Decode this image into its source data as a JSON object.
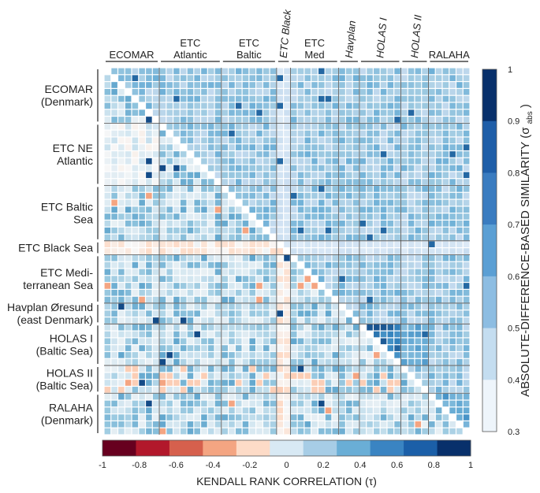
{
  "chart_data": {
    "type": "heatmap",
    "title": "",
    "groups": [
      {
        "id": "ECOMAR",
        "n": 8,
        "top_label": [
          "ECOMAR"
        ],
        "top_italic": false,
        "left_label": [
          "ECOMAR",
          "(Denmark)"
        ]
      },
      {
        "id": "ETC NE Atlantic",
        "n": 9,
        "top_label": [
          "ETC",
          "Atlantic"
        ],
        "top_italic": false,
        "left_label": [
          "ETC NE",
          "Atlantic"
        ]
      },
      {
        "id": "ETC Baltic Sea",
        "n": 8,
        "top_label": [
          "ETC",
          "Baltic"
        ],
        "top_italic": false,
        "left_label": [
          "ETC Baltic",
          "Sea"
        ]
      },
      {
        "id": "ETC Black Sea",
        "n": 2,
        "top_label": [
          "ETC Black"
        ],
        "top_italic": true,
        "left_label": [
          "ETC Black Sea"
        ]
      },
      {
        "id": "ETC Mediterranean Sea",
        "n": 7,
        "top_label": [
          "ETC",
          "Med"
        ],
        "top_italic": false,
        "left_label": [
          "ETC Medi-",
          "terranean Sea"
        ]
      },
      {
        "id": "Havplan Øresund",
        "n": 3,
        "top_label": [
          "Havplan"
        ],
        "top_italic": true,
        "left_label": [
          "Havplan Øresund",
          "(east Denmark)"
        ]
      },
      {
        "id": "HOLAS I",
        "n": 6,
        "top_label": [
          "HOLAS I"
        ],
        "top_italic": true,
        "left_label": [
          "HOLAS I",
          "(Baltic Sea)"
        ]
      },
      {
        "id": "HOLAS II",
        "n": 4,
        "top_label": [
          "HOLAS II"
        ],
        "top_italic": true,
        "left_label": [
          "HOLAS II",
          "(Baltic Sea)"
        ]
      },
      {
        "id": "RALAHA",
        "n": 6,
        "top_label": [
          "RALAHA"
        ],
        "top_italic": false,
        "left_label": [
          "RALAHA",
          "(Denmark)"
        ]
      }
    ],
    "upper_triangle": {
      "measure": "absolute-difference-based similarity (σ abs)",
      "range": [
        0.3,
        1
      ],
      "typical_value": 0.65,
      "block_means": {
        "HOLAS I": 0.9,
        "HOLAS I-HOLAS II": 0.76,
        "RALAHA": 0.78
      }
    },
    "lower_triangle": {
      "measure": "Kendall rank correlation (τ)",
      "range": [
        -1,
        1
      ],
      "typical_value": 0.3,
      "notable": [
        "ETC Black Sea row mostly slightly negative (≈ -0.1)",
        "isolated cells near -0.4",
        "isolated cells near 0.9"
      ]
    },
    "diagonal_value": null,
    "colorbar_right": {
      "label": "ABSOLUTE-DIFFERENCE-BASED SIMILARITY (σ",
      "label_sub": "abs",
      "label_end": ")",
      "ticks": [
        "1",
        "0.9",
        "0.8",
        "0.7",
        "0.6",
        "0.5",
        "0.4",
        "0.3"
      ],
      "colors": [
        "#08306b",
        "#1f5ea8",
        "#3a7cc0",
        "#5b9fd4",
        "#8dbde2",
        "#c4ddf0",
        "#eef5fb"
      ]
    },
    "colorbar_bottom": {
      "label": "KENDALL RANK CORRELATION (τ)",
      "ticks": [
        "-1",
        "-0.8",
        "-0.6",
        "-0.4",
        "-0.2",
        "0",
        "0.2",
        "0.4",
        "0.6",
        "0.8",
        "1"
      ],
      "colors": [
        "#67001f",
        "#b2182b",
        "#d6604d",
        "#f4a582",
        "#fddbc7",
        "#d8e9f4",
        "#a7cde6",
        "#6aaed6",
        "#3a84c2",
        "#1b5fa8",
        "#08306b"
      ]
    }
  }
}
